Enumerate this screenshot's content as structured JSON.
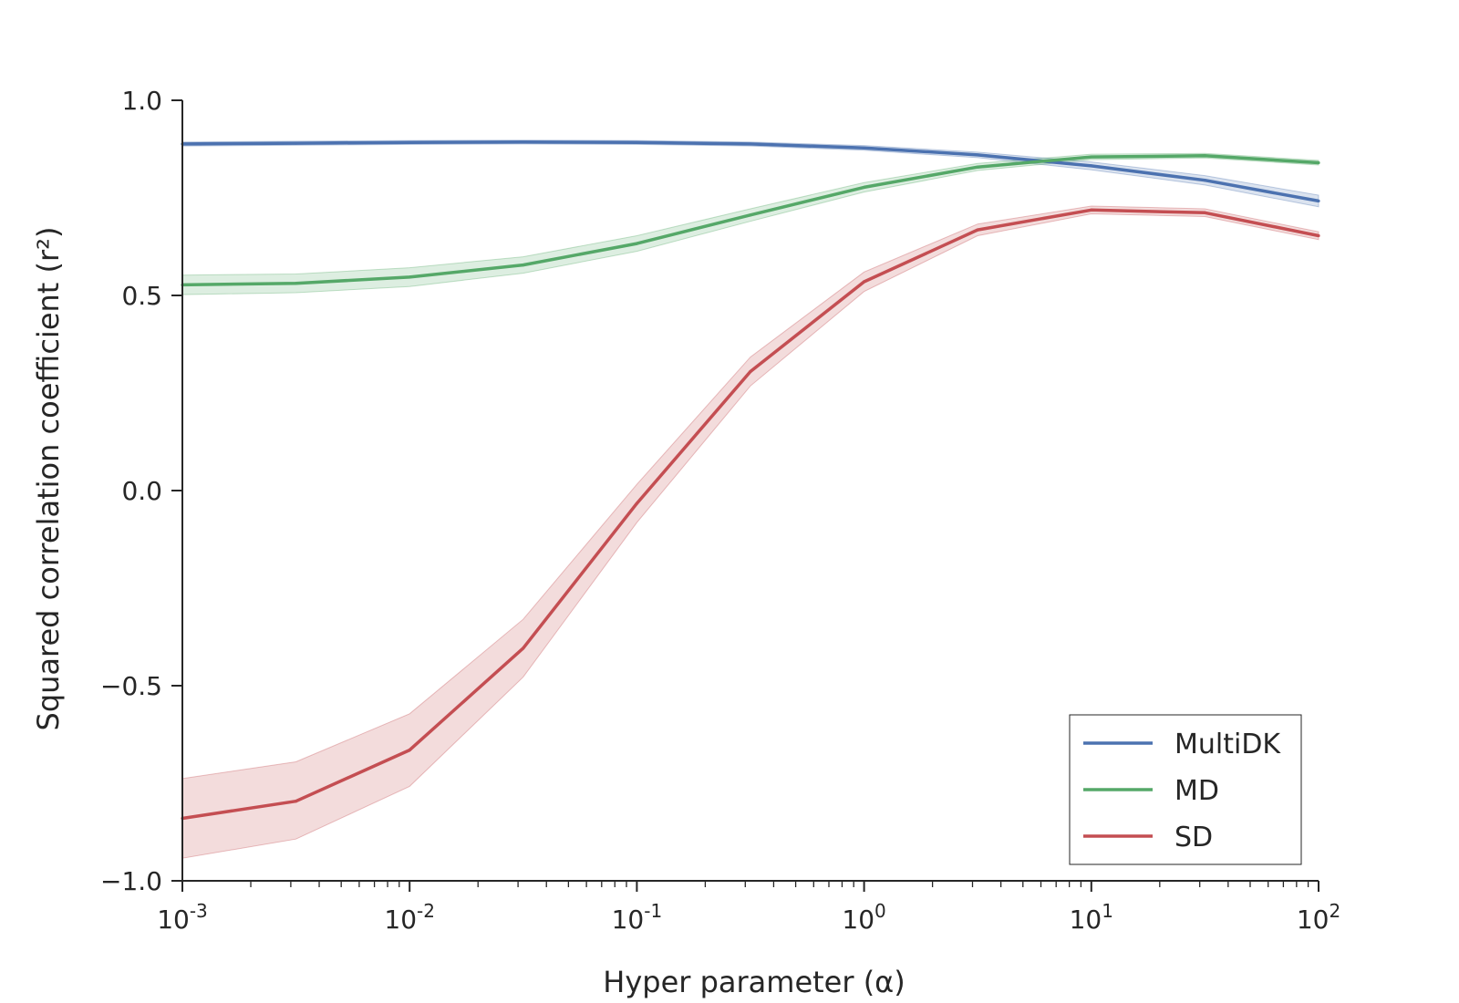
{
  "chart_data": {
    "type": "line",
    "xscale": "log",
    "xlabel": "Hyper parameter (α)",
    "ylabel": "Squared correlation coefficient (r²)",
    "xlim": [
      0.001,
      100
    ],
    "ylim": [
      -1.0,
      1.0
    ],
    "x": [
      0.001,
      0.00316,
      0.01,
      0.0316,
      0.1,
      0.316,
      1,
      3.16,
      10,
      31.6,
      100
    ],
    "x_ticks": [
      {
        "value": 0.001,
        "base": "10",
        "exp": "-3"
      },
      {
        "value": 0.01,
        "base": "10",
        "exp": "-2"
      },
      {
        "value": 0.1,
        "base": "10",
        "exp": "-1"
      },
      {
        "value": 1,
        "base": "10",
        "exp": "0"
      },
      {
        "value": 10,
        "base": "10",
        "exp": "1"
      },
      {
        "value": 100,
        "base": "10",
        "exp": "2"
      }
    ],
    "y_ticks": [
      {
        "value": 1.0,
        "label": "1.0"
      },
      {
        "value": 0.5,
        "label": "0.5"
      },
      {
        "value": 0.0,
        "label": "0.0"
      },
      {
        "value": -0.5,
        "label": "−0.5"
      },
      {
        "value": -1.0,
        "label": "−1.0"
      }
    ],
    "legend_position": "lower-right",
    "series": [
      {
        "name": "MultiDK",
        "color": "#4c72b0",
        "values": [
          0.888,
          0.89,
          0.892,
          0.893,
          0.892,
          0.888,
          0.878,
          0.86,
          0.832,
          0.795,
          0.742
        ],
        "lower": [
          0.883,
          0.885,
          0.887,
          0.888,
          0.887,
          0.883,
          0.872,
          0.853,
          0.822,
          0.783,
          0.727
        ],
        "upper": [
          0.893,
          0.895,
          0.897,
          0.898,
          0.897,
          0.893,
          0.884,
          0.867,
          0.842,
          0.807,
          0.757
        ]
      },
      {
        "name": "MD",
        "color": "#55a868",
        "values": [
          0.527,
          0.531,
          0.547,
          0.578,
          0.633,
          0.706,
          0.777,
          0.829,
          0.855,
          0.858,
          0.84
        ],
        "lower": [
          0.502,
          0.507,
          0.523,
          0.557,
          0.613,
          0.69,
          0.765,
          0.82,
          0.848,
          0.852,
          0.834
        ],
        "upper": [
          0.552,
          0.555,
          0.571,
          0.599,
          0.653,
          0.722,
          0.789,
          0.838,
          0.862,
          0.864,
          0.846
        ]
      },
      {
        "name": "SD",
        "color": "#c44e52",
        "values": [
          -0.84,
          -0.796,
          -0.665,
          -0.404,
          -0.033,
          0.305,
          0.535,
          0.668,
          0.719,
          0.712,
          0.653
        ],
        "lower": [
          -0.942,
          -0.893,
          -0.758,
          -0.478,
          -0.082,
          0.268,
          0.51,
          0.653,
          0.709,
          0.702,
          0.643
        ],
        "upper": [
          -0.738,
          -0.695,
          -0.572,
          -0.33,
          0.016,
          0.342,
          0.56,
          0.683,
          0.729,
          0.722,
          0.663
        ]
      }
    ]
  }
}
